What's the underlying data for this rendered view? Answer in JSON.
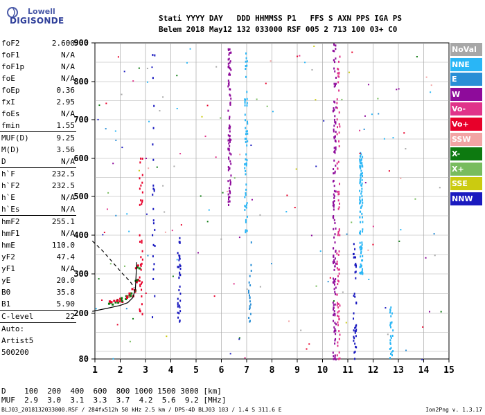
{
  "logo": {
    "line1": "Lowell",
    "line2": "DIGISONDE"
  },
  "header": {
    "line1": "Stati YYYY DAY   DDD HHMMSS P1   FFS S AXN PPS IGA PS",
    "line2": "Belem 2018 May12 132 033000 RSF 005 2 713 100 03+ C0"
  },
  "params": {
    "g1": [
      {
        "k": "foF2",
        "v": "2.600"
      },
      {
        "k": "foF1",
        "v": "N/A"
      },
      {
        "k": "foF1p",
        "v": "N/A"
      },
      {
        "k": "foE",
        "v": "N/A"
      },
      {
        "k": "foEp",
        "v": "0.36"
      },
      {
        "k": "fxI",
        "v": "2.95"
      },
      {
        "k": "foEs",
        "v": "N/A"
      },
      {
        "k": "fmin",
        "v": "1.55"
      }
    ],
    "g2": [
      {
        "k": "MUF(D)",
        "v": "9.25"
      },
      {
        "k": "M(D)",
        "v": "3.56"
      },
      {
        "k": "D",
        "v": "N/A"
      }
    ],
    "g3": [
      {
        "k": "h`F",
        "v": "232.5"
      },
      {
        "k": "h`F2",
        "v": "232.5"
      },
      {
        "k": "h`E",
        "v": "N/A"
      },
      {
        "k": "h`Es",
        "v": "N/A"
      }
    ],
    "g4": [
      {
        "k": "hmF2",
        "v": "255.1"
      },
      {
        "k": "hmF1",
        "v": "N/A"
      },
      {
        "k": "hmE",
        "v": "110.0"
      },
      {
        "k": "yF2",
        "v": "47.4"
      },
      {
        "k": "yF1",
        "v": "N/A"
      },
      {
        "k": "yE",
        "v": "20.0"
      },
      {
        "k": "B0",
        "v": "35.8"
      },
      {
        "k": "B1",
        "v": "5.90"
      }
    ],
    "g5": [
      {
        "k": "C-level",
        "v": "22"
      }
    ],
    "auto": [
      "Auto:",
      "Artist5",
      "500200"
    ]
  },
  "legend": [
    {
      "label": "NoVal",
      "color": "#a7a7a7"
    },
    {
      "label": "NNE",
      "color": "#29b6f6"
    },
    {
      "label": "E",
      "color": "#2a8fd6"
    },
    {
      "label": "W",
      "color": "#8e0b9b"
    },
    {
      "label": "Vo-",
      "color": "#e0338a"
    },
    {
      "label": "Vo+",
      "color": "#e8002a"
    },
    {
      "label": "SSW",
      "color": "#f2a4a4"
    },
    {
      "label": "X-",
      "color": "#0d7a10"
    },
    {
      "label": "X+",
      "color": "#78bc5e"
    },
    {
      "label": "SSE",
      "color": "#cbcb10"
    },
    {
      "label": "NNW",
      "color": "#1a1abf"
    }
  ],
  "muf_table": {
    "d_row": "D    100  200  400  600  800 1000 1500 3000 [km]",
    "m_row": "MUF  2.9  3.0  3.1  3.3  3.7  4.2  5.6  9.2 [MHz]"
  },
  "footer": {
    "left": "BLJ03_2018132033000.RSF / 284fx512h 50 kHz 2.5 km / DPS-4D BLJ03 103 / 1.4 S 311.6 E",
    "right": "Ion2Png v. 1.3.17"
  },
  "chart_data": {
    "type": "scatter",
    "x_ticks": [
      "1",
      "2",
      "3",
      "4",
      "5",
      "6",
      "7",
      "8",
      "9",
      "10",
      "11",
      "12",
      "13",
      "14",
      "15"
    ],
    "y_ticks": [
      "80",
      "200",
      "300",
      "400",
      "500",
      "600",
      "700",
      "800",
      "900"
    ],
    "xlim": [
      1,
      15
    ],
    "ylim": [
      80,
      900
    ],
    "y_scale": "ionospheric height scale (stretched below 200 km)",
    "grid": true,
    "frequency_units": "MHz",
    "height_units": "km",
    "traces": [
      {
        "name": "O-trace F2 echoes",
        "color": "#e8002a",
        "x": [
          1.6,
          1.8,
          2.0,
          2.2,
          2.4,
          2.5,
          2.6,
          2.65
        ],
        "y": [
          228,
          232,
          236,
          242,
          250,
          262,
          285,
          320
        ]
      },
      {
        "name": "Profile curve (solid)",
        "color": "#000000",
        "x": [
          0.9,
          1.5,
          2.0,
          2.3,
          2.5,
          2.6,
          2.63,
          2.65
        ],
        "y": [
          205,
          213,
          220,
          227,
          240,
          262,
          300,
          330
        ]
      },
      {
        "name": "Profile curve (dashed)",
        "color": "#000000",
        "x": [
          0.9,
          1.3,
          1.7,
          2.1,
          2.4,
          2.55
        ],
        "y": [
          385,
          360,
          330,
          300,
          280,
          265
        ]
      }
    ]
  }
}
